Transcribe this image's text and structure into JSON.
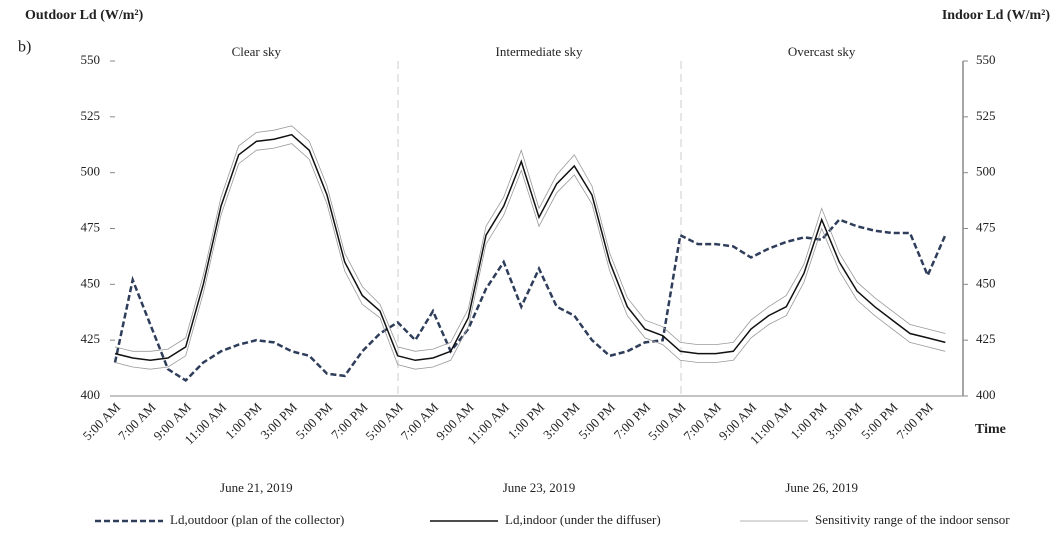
{
  "chart_data": {
    "type": "line",
    "panel_label": "b)",
    "y_label": "Outdoor Ld (W/m²)",
    "y2_label": "Indoor Ld (W/m²)",
    "x_label": "Time",
    "annotations": [
      "Clear sky",
      "Intermediate sky",
      "Overcast sky"
    ],
    "day_labels": [
      "June 21, 2019",
      "June 23, 2019",
      "June 26, 2019"
    ],
    "categories": [
      "5:00 AM",
      null,
      "7:00 AM",
      null,
      "9:00 AM",
      null,
      "11:00 AM",
      null,
      "1:00 PM",
      null,
      "3:00 PM",
      null,
      "5:00 PM",
      null,
      "7:00 PM",
      null,
      "5:00 AM",
      null,
      "7:00 AM",
      null,
      "9:00 AM",
      null,
      "11:00 AM",
      null,
      "1:00 PM",
      null,
      "3:00 PM",
      null,
      "5:00 PM",
      null,
      "7:00 PM",
      null,
      "5:00 AM",
      null,
      "7:00 AM",
      null,
      "9:00 AM",
      null,
      "11:00 AM",
      null,
      "1:00 PM",
      null,
      "3:00 PM",
      null,
      "5:00 PM",
      null,
      "7:00 PM",
      null
    ],
    "ylim": [
      400,
      550
    ],
    "yticks": [
      400,
      425,
      450,
      475,
      500,
      525,
      550
    ],
    "y2lim": [
      400,
      550
    ],
    "y2ticks": [
      400,
      425,
      450,
      475,
      500,
      525,
      550
    ],
    "series": [
      {
        "name": "Ld,outdoor (plan of the collector)",
        "color": "#2e3d5a",
        "dash": true,
        "values": [
          415,
          452,
          432,
          412,
          407,
          415,
          420,
          423,
          425,
          424,
          420,
          418,
          410,
          409,
          420,
          428,
          433,
          425,
          438,
          420,
          430,
          448,
          460,
          440,
          457,
          440,
          436,
          425,
          418,
          420,
          424,
          425,
          472,
          468,
          468,
          467,
          462,
          466,
          469,
          471,
          470,
          479,
          476,
          474,
          473,
          473,
          454,
          472
        ]
      },
      {
        "name": "Ld,indoor (under the diffuser)",
        "color": "#111111",
        "values": [
          419,
          417,
          416,
          417,
          422,
          450,
          485,
          508,
          514,
          515,
          517,
          510,
          490,
          460,
          445,
          438,
          418,
          416,
          417,
          420,
          435,
          472,
          485,
          505,
          480,
          495,
          503,
          490,
          460,
          440,
          430,
          427,
          420,
          419,
          419,
          420,
          430,
          436,
          440,
          455,
          479,
          460,
          447,
          440,
          434,
          428,
          426,
          424
        ]
      },
      {
        "name": "Sensitivity range of the indoor sensor",
        "color": "#9a9a9a",
        "values": [
          422,
          420,
          420,
          421,
          426,
          454,
          489,
          512,
          518,
          519,
          521,
          514,
          494,
          464,
          449,
          441,
          422,
          420,
          421,
          424,
          439,
          476,
          489,
          510,
          484,
          499,
          508,
          494,
          464,
          444,
          434,
          431,
          424,
          423,
          423,
          424,
          434,
          440,
          445,
          459,
          484,
          464,
          451,
          444,
          438,
          432,
          430,
          428
        ]
      },
      {
        "color": "#9a9a9a",
        "values": [
          415,
          413,
          412,
          413,
          418,
          446,
          481,
          504,
          510,
          511,
          513,
          506,
          486,
          456,
          441,
          435,
          414,
          412,
          413,
          416,
          431,
          468,
          481,
          501,
          476,
          491,
          499,
          486,
          456,
          436,
          426,
          423,
          416,
          415,
          415,
          416,
          426,
          432,
          436,
          451,
          475,
          456,
          443,
          436,
          430,
          424,
          422,
          420
        ]
      }
    ]
  }
}
